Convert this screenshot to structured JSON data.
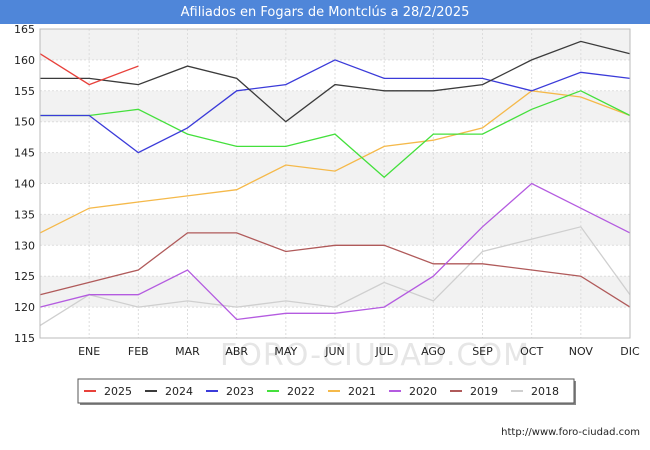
{
  "header": {
    "title": "Afiliados en Fogars de Montclús a 28/2/2025"
  },
  "footer": {
    "source": "http://www.foro-ciudad.com"
  },
  "watermark": "FORO-CIUDAD.COM",
  "colors": {
    "title_bg": "#4f86d9",
    "band": "#f2f2f2",
    "grid": "#dddddd",
    "axis": "#222222"
  },
  "chart_data": {
    "type": "line",
    "title": "Afiliados en Fogars de Montclús a 28/2/2025",
    "xlabel": "",
    "ylabel": "",
    "ylim": [
      115,
      165
    ],
    "yticks": [
      115,
      120,
      125,
      130,
      135,
      140,
      145,
      150,
      155,
      160,
      165
    ],
    "categories": [
      "",
      "ENE",
      "FEB",
      "MAR",
      "ABR",
      "MAY",
      "JUN",
      "JUL",
      "AGO",
      "SEP",
      "OCT",
      "NOV",
      "DIC"
    ],
    "grid": true,
    "legend_position": "bottom",
    "series": [
      {
        "name": "2025",
        "color": "#e8413b",
        "values": [
          161,
          156,
          159,
          null,
          null,
          null,
          null,
          null,
          null,
          null,
          null,
          null,
          null
        ]
      },
      {
        "name": "2024",
        "color": "#3b3b3b",
        "values": [
          157,
          157,
          156,
          159,
          157,
          150,
          156,
          155,
          155,
          156,
          160,
          163,
          161
        ]
      },
      {
        "name": "2023",
        "color": "#3b3bd9",
        "values": [
          151,
          151,
          145,
          149,
          155,
          156,
          160,
          157,
          157,
          157,
          155,
          158,
          157
        ]
      },
      {
        "name": "2022",
        "color": "#44e03c",
        "values": [
          151,
          151,
          152,
          148,
          146,
          146,
          148,
          141,
          148,
          148,
          152,
          155,
          151
        ]
      },
      {
        "name": "2021",
        "color": "#f5b94a",
        "values": [
          132,
          136,
          137,
          138,
          139,
          143,
          142,
          146,
          147,
          149,
          155,
          154,
          151
        ]
      },
      {
        "name": "2020",
        "color": "#b45be0",
        "values": [
          120,
          122,
          122,
          126,
          118,
          119,
          119,
          120,
          125,
          133,
          140,
          136,
          132
        ]
      },
      {
        "name": "2019",
        "color": "#b05a5a",
        "values": [
          122,
          124,
          126,
          132,
          132,
          129,
          130,
          130,
          127,
          127,
          126,
          125,
          120
        ]
      },
      {
        "name": "2018",
        "color": "#cfcfcf",
        "values": [
          117,
          122,
          120,
          121,
          120,
          121,
          120,
          124,
          121,
          129,
          131,
          133,
          122
        ]
      }
    ]
  }
}
